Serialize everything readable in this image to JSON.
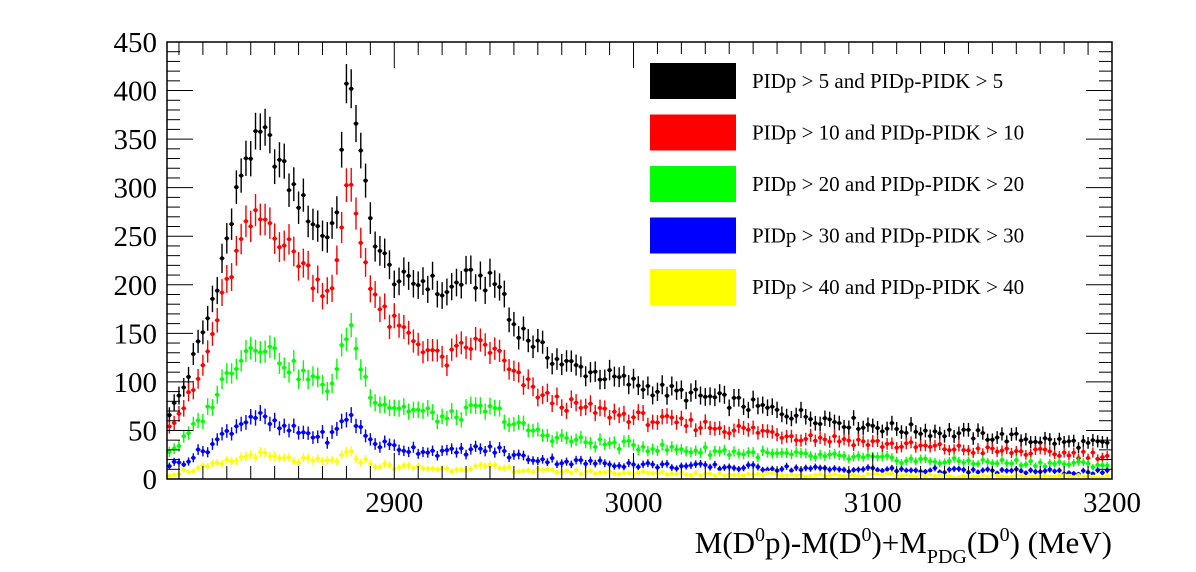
{
  "chart_data": {
    "type": "scatter",
    "title": "",
    "xlabel": {
      "main": "M(D",
      "sup1": "0",
      "part2": "p)-M(D",
      "sup2": "0",
      "part3": ")+M",
      "sub": "PDG",
      "part4": "(D",
      "sup3": "0",
      "part5": ") (MeV)"
    },
    "ylabel": "",
    "xlim": [
      2805,
      3200
    ],
    "ylim": [
      0,
      450
    ],
    "x_ticks": [
      2900,
      3000,
      3100,
      3200
    ],
    "y_ticks": [
      0,
      50,
      100,
      150,
      200,
      250,
      300,
      350,
      400,
      450
    ],
    "grid": false,
    "legend_position": "top-right",
    "series": [
      {
        "name": "PIDp > 5 and PIDp-PIDK > 5",
        "color": "#000000",
        "anchors": [
          [
            2807,
            70
          ],
          [
            2812,
            95
          ],
          [
            2817,
            130
          ],
          [
            2822,
            165
          ],
          [
            2827,
            215
          ],
          [
            2832,
            265
          ],
          [
            2837,
            330
          ],
          [
            2841,
            340
          ],
          [
            2845,
            355
          ],
          [
            2849,
            340
          ],
          [
            2853,
            320
          ],
          [
            2857,
            300
          ],
          [
            2861,
            285
          ],
          [
            2865,
            270
          ],
          [
            2869,
            255
          ],
          [
            2873,
            250
          ],
          [
            2876,
            285
          ],
          [
            2879,
            360
          ],
          [
            2881,
            425
          ],
          [
            2883,
            395
          ],
          [
            2886,
            330
          ],
          [
            2890,
            265
          ],
          [
            2894,
            235
          ],
          [
            2898,
            215
          ],
          [
            2902,
            205
          ],
          [
            2906,
            200
          ],
          [
            2910,
            203
          ],
          [
            2914,
            205
          ],
          [
            2918,
            195
          ],
          [
            2922,
            190
          ],
          [
            2927,
            205
          ],
          [
            2932,
            205
          ],
          [
            2937,
            205
          ],
          [
            2941,
            200
          ],
          [
            2945,
            200
          ],
          [
            2948,
            165
          ],
          [
            2955,
            148
          ],
          [
            2962,
            132
          ],
          [
            2970,
            120
          ],
          [
            2980,
            112
          ],
          [
            2990,
            105
          ],
          [
            3000,
            98
          ],
          [
            3010,
            92
          ],
          [
            3020,
            88
          ],
          [
            3030,
            84
          ],
          [
            3040,
            80
          ],
          [
            3050,
            75
          ],
          [
            3060,
            70
          ],
          [
            3070,
            66
          ],
          [
            3080,
            62
          ],
          [
            3090,
            58
          ],
          [
            3100,
            55
          ],
          [
            3110,
            52
          ],
          [
            3120,
            50
          ],
          [
            3130,
            48
          ],
          [
            3140,
            46
          ],
          [
            3150,
            44
          ],
          [
            3160,
            42
          ],
          [
            3170,
            40
          ],
          [
            3180,
            38
          ],
          [
            3190,
            36
          ],
          [
            3200,
            35
          ]
        ]
      },
      {
        "name": "PIDp > 10 and PIDp-PIDK > 10",
        "color": "#ff0000",
        "anchors": [
          [
            2807,
            60
          ],
          [
            2812,
            75
          ],
          [
            2817,
            95
          ],
          [
            2822,
            130
          ],
          [
            2827,
            175
          ],
          [
            2832,
            215
          ],
          [
            2837,
            250
          ],
          [
            2841,
            265
          ],
          [
            2845,
            268
          ],
          [
            2849,
            262
          ],
          [
            2853,
            245
          ],
          [
            2857,
            235
          ],
          [
            2861,
            225
          ],
          [
            2865,
            210
          ],
          [
            2869,
            200
          ],
          [
            2873,
            195
          ],
          [
            2876,
            220
          ],
          [
            2879,
            270
          ],
          [
            2881,
            318
          ],
          [
            2883,
            290
          ],
          [
            2886,
            245
          ],
          [
            2890,
            205
          ],
          [
            2894,
            175
          ],
          [
            2898,
            162
          ],
          [
            2902,
            155
          ],
          [
            2906,
            148
          ],
          [
            2910,
            140
          ],
          [
            2914,
            135
          ],
          [
            2918,
            125
          ],
          [
            2922,
            122
          ],
          [
            2927,
            132
          ],
          [
            2932,
            138
          ],
          [
            2937,
            140
          ],
          [
            2941,
            132
          ],
          [
            2945,
            125
          ],
          [
            2948,
            110
          ],
          [
            2955,
            98
          ],
          [
            2962,
            85
          ],
          [
            2970,
            78
          ],
          [
            2980,
            72
          ],
          [
            2990,
            68
          ],
          [
            3000,
            64
          ],
          [
            3010,
            60
          ],
          [
            3020,
            57
          ],
          [
            3030,
            55
          ],
          [
            3040,
            52
          ],
          [
            3050,
            50
          ],
          [
            3060,
            47
          ],
          [
            3070,
            44
          ],
          [
            3080,
            42
          ],
          [
            3090,
            40
          ],
          [
            3100,
            37
          ],
          [
            3110,
            35
          ],
          [
            3120,
            33
          ],
          [
            3130,
            32
          ],
          [
            3140,
            30
          ],
          [
            3150,
            29
          ],
          [
            3160,
            28
          ],
          [
            3170,
            27
          ],
          [
            3180,
            26
          ],
          [
            3190,
            25
          ],
          [
            3200,
            24
          ]
        ]
      },
      {
        "name": "PIDp > 20 and PIDp-PIDK > 20",
        "color": "#00ff00",
        "anchors": [
          [
            2807,
            30
          ],
          [
            2812,
            40
          ],
          [
            2817,
            55
          ],
          [
            2822,
            70
          ],
          [
            2827,
            95
          ],
          [
            2832,
            115
          ],
          [
            2837,
            130
          ],
          [
            2841,
            138
          ],
          [
            2845,
            140
          ],
          [
            2849,
            132
          ],
          [
            2853,
            122
          ],
          [
            2857,
            115
          ],
          [
            2861,
            108
          ],
          [
            2865,
            103
          ],
          [
            2869,
            98
          ],
          [
            2873,
            95
          ],
          [
            2876,
            110
          ],
          [
            2879,
            140
          ],
          [
            2881,
            162
          ],
          [
            2883,
            148
          ],
          [
            2886,
            115
          ],
          [
            2890,
            90
          ],
          [
            2894,
            80
          ],
          [
            2898,
            76
          ],
          [
            2902,
            74
          ],
          [
            2906,
            72
          ],
          [
            2910,
            70
          ],
          [
            2914,
            68
          ],
          [
            2918,
            64
          ],
          [
            2922,
            62
          ],
          [
            2927,
            66
          ],
          [
            2932,
            70
          ],
          [
            2937,
            72
          ],
          [
            2941,
            70
          ],
          [
            2945,
            68
          ],
          [
            2948,
            58
          ],
          [
            2955,
            52
          ],
          [
            2962,
            46
          ],
          [
            2970,
            42
          ],
          [
            2980,
            38
          ],
          [
            2990,
            36
          ],
          [
            3000,
            34
          ],
          [
            3010,
            32
          ],
          [
            3020,
            30
          ],
          [
            3030,
            29
          ],
          [
            3040,
            28
          ],
          [
            3050,
            26
          ],
          [
            3060,
            25
          ],
          [
            3070,
            24
          ],
          [
            3080,
            23
          ],
          [
            3090,
            22
          ],
          [
            3100,
            21
          ],
          [
            3110,
            20
          ],
          [
            3120,
            19
          ],
          [
            3130,
            18
          ],
          [
            3140,
            18
          ],
          [
            3150,
            17
          ],
          [
            3160,
            17
          ],
          [
            3170,
            16
          ],
          [
            3180,
            16
          ],
          [
            3190,
            15
          ],
          [
            3200,
            15
          ]
        ]
      },
      {
        "name": "PIDp > 30 and PIDp-PIDK > 30",
        "color": "#0000ff",
        "anchors": [
          [
            2807,
            15
          ],
          [
            2812,
            18
          ],
          [
            2817,
            25
          ],
          [
            2822,
            32
          ],
          [
            2827,
            42
          ],
          [
            2832,
            52
          ],
          [
            2837,
            60
          ],
          [
            2841,
            66
          ],
          [
            2845,
            62
          ],
          [
            2849,
            56
          ],
          [
            2853,
            52
          ],
          [
            2857,
            50
          ],
          [
            2861,
            48
          ],
          [
            2865,
            46
          ],
          [
            2869,
            44
          ],
          [
            2873,
            42
          ],
          [
            2876,
            50
          ],
          [
            2879,
            60
          ],
          [
            2881,
            68
          ],
          [
            2883,
            62
          ],
          [
            2886,
            50
          ],
          [
            2890,
            40
          ],
          [
            2894,
            36
          ],
          [
            2898,
            34
          ],
          [
            2902,
            32
          ],
          [
            2906,
            31
          ],
          [
            2910,
            30
          ],
          [
            2914,
            29
          ],
          [
            2918,
            28
          ],
          [
            2922,
            27
          ],
          [
            2927,
            28
          ],
          [
            2932,
            30
          ],
          [
            2937,
            31
          ],
          [
            2941,
            30
          ],
          [
            2945,
            29
          ],
          [
            2948,
            25
          ],
          [
            2955,
            22
          ],
          [
            2962,
            20
          ],
          [
            2970,
            18
          ],
          [
            2980,
            17
          ],
          [
            2990,
            16
          ],
          [
            3000,
            15
          ],
          [
            3010,
            14
          ],
          [
            3020,
            13
          ],
          [
            3030,
            13
          ],
          [
            3040,
            12
          ],
          [
            3050,
            12
          ],
          [
            3060,
            11
          ],
          [
            3070,
            11
          ],
          [
            3080,
            10
          ],
          [
            3090,
            10
          ],
          [
            3100,
            10
          ],
          [
            3110,
            9
          ],
          [
            3120,
            9
          ],
          [
            3130,
            9
          ],
          [
            3140,
            8
          ],
          [
            3150,
            8
          ],
          [
            3160,
            8
          ],
          [
            3170,
            8
          ],
          [
            3180,
            7
          ],
          [
            3190,
            7
          ],
          [
            3200,
            7
          ]
        ]
      },
      {
        "name": "PIDp > 40 and PIDp-PIDK > 40",
        "color": "#ffff00",
        "anchors": [
          [
            2807,
            5
          ],
          [
            2812,
            8
          ],
          [
            2817,
            10
          ],
          [
            2822,
            12
          ],
          [
            2827,
            15
          ],
          [
            2832,
            18
          ],
          [
            2837,
            22
          ],
          [
            2841,
            26
          ],
          [
            2845,
            24
          ],
          [
            2849,
            22
          ],
          [
            2853,
            20
          ],
          [
            2857,
            20
          ],
          [
            2861,
            19
          ],
          [
            2865,
            18
          ],
          [
            2869,
            18
          ],
          [
            2873,
            18
          ],
          [
            2876,
            20
          ],
          [
            2879,
            24
          ],
          [
            2881,
            26
          ],
          [
            2883,
            24
          ],
          [
            2886,
            20
          ],
          [
            2890,
            16
          ],
          [
            2894,
            14
          ],
          [
            2898,
            13
          ],
          [
            2902,
            12
          ],
          [
            2906,
            12
          ],
          [
            2910,
            12
          ],
          [
            2914,
            11
          ],
          [
            2918,
            11
          ],
          [
            2922,
            10
          ],
          [
            2927,
            11
          ],
          [
            2932,
            12
          ],
          [
            2937,
            12
          ],
          [
            2941,
            12
          ],
          [
            2945,
            11
          ],
          [
            2948,
            10
          ],
          [
            2955,
            9
          ],
          [
            2962,
            8
          ],
          [
            2970,
            8
          ],
          [
            2980,
            7
          ],
          [
            2990,
            7
          ],
          [
            3000,
            6
          ],
          [
            3010,
            6
          ],
          [
            3020,
            6
          ],
          [
            3030,
            5
          ],
          [
            3040,
            5
          ],
          [
            3050,
            5
          ],
          [
            3060,
            5
          ],
          [
            3070,
            4
          ],
          [
            3080,
            4
          ],
          [
            3090,
            4
          ],
          [
            3100,
            4
          ],
          [
            3110,
            4
          ],
          [
            3120,
            4
          ],
          [
            3130,
            3
          ],
          [
            3140,
            3
          ],
          [
            3150,
            3
          ],
          [
            3160,
            3
          ],
          [
            3170,
            3
          ],
          [
            3180,
            3
          ],
          [
            3190,
            3
          ],
          [
            3200,
            3
          ]
        ]
      }
    ]
  }
}
